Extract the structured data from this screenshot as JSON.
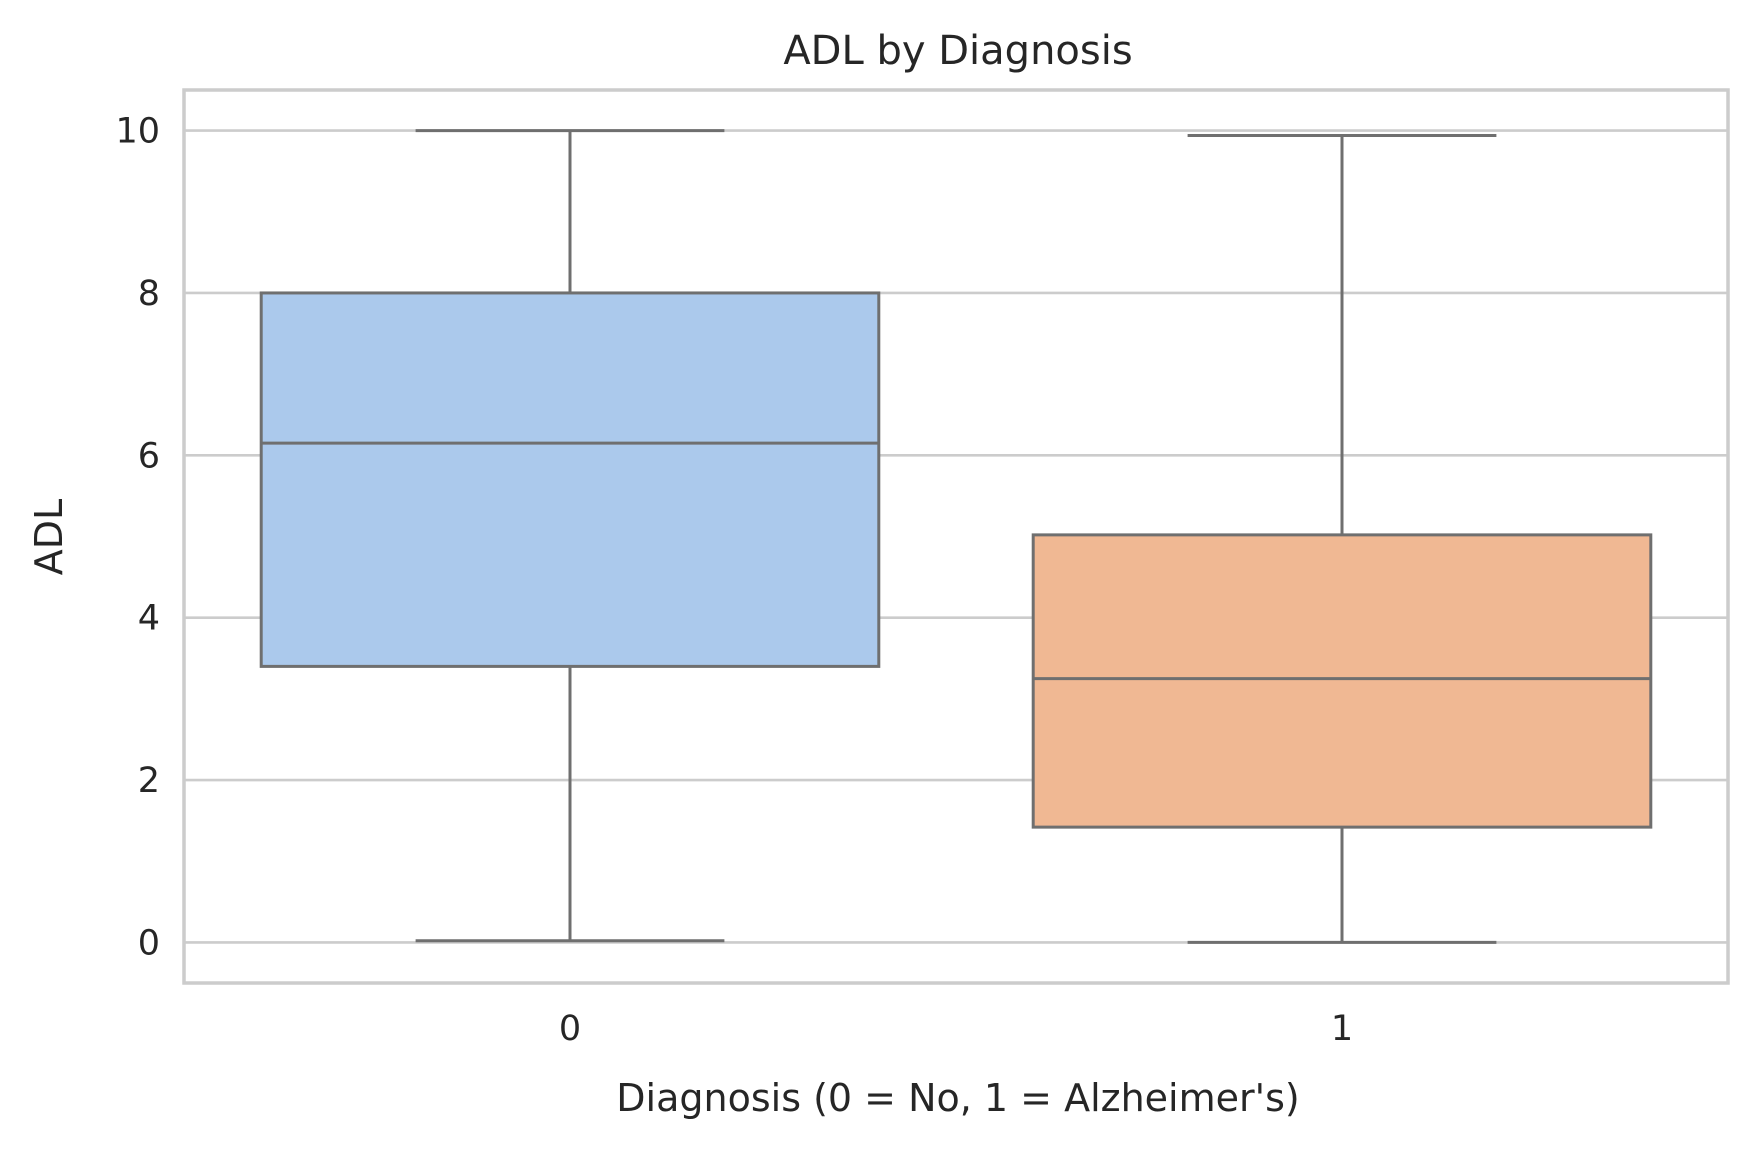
{
  "chart_data": {
    "type": "box",
    "title": "ADL by Diagnosis",
    "xlabel": "Diagnosis (0 = No, 1 = Alzheimer's)",
    "ylabel": "ADL",
    "ylim": [
      -0.5,
      10.5
    ],
    "yticks": [
      0,
      2,
      4,
      6,
      8,
      10
    ],
    "grid": true,
    "categories": [
      "0",
      "1"
    ],
    "boxes": [
      {
        "category": "0",
        "min": 0.02,
        "q1": 3.4,
        "median": 6.15,
        "q3": 8.0,
        "max": 10.0,
        "color": "#abc9ec"
      },
      {
        "category": "1",
        "min": 0.0,
        "q1": 1.42,
        "median": 3.25,
        "q3": 5.02,
        "max": 9.94,
        "color": "#f0b893"
      }
    ],
    "colors": {
      "box_edge": "#6f6f6f",
      "grid": "#cccccc",
      "text": "#262626"
    }
  }
}
